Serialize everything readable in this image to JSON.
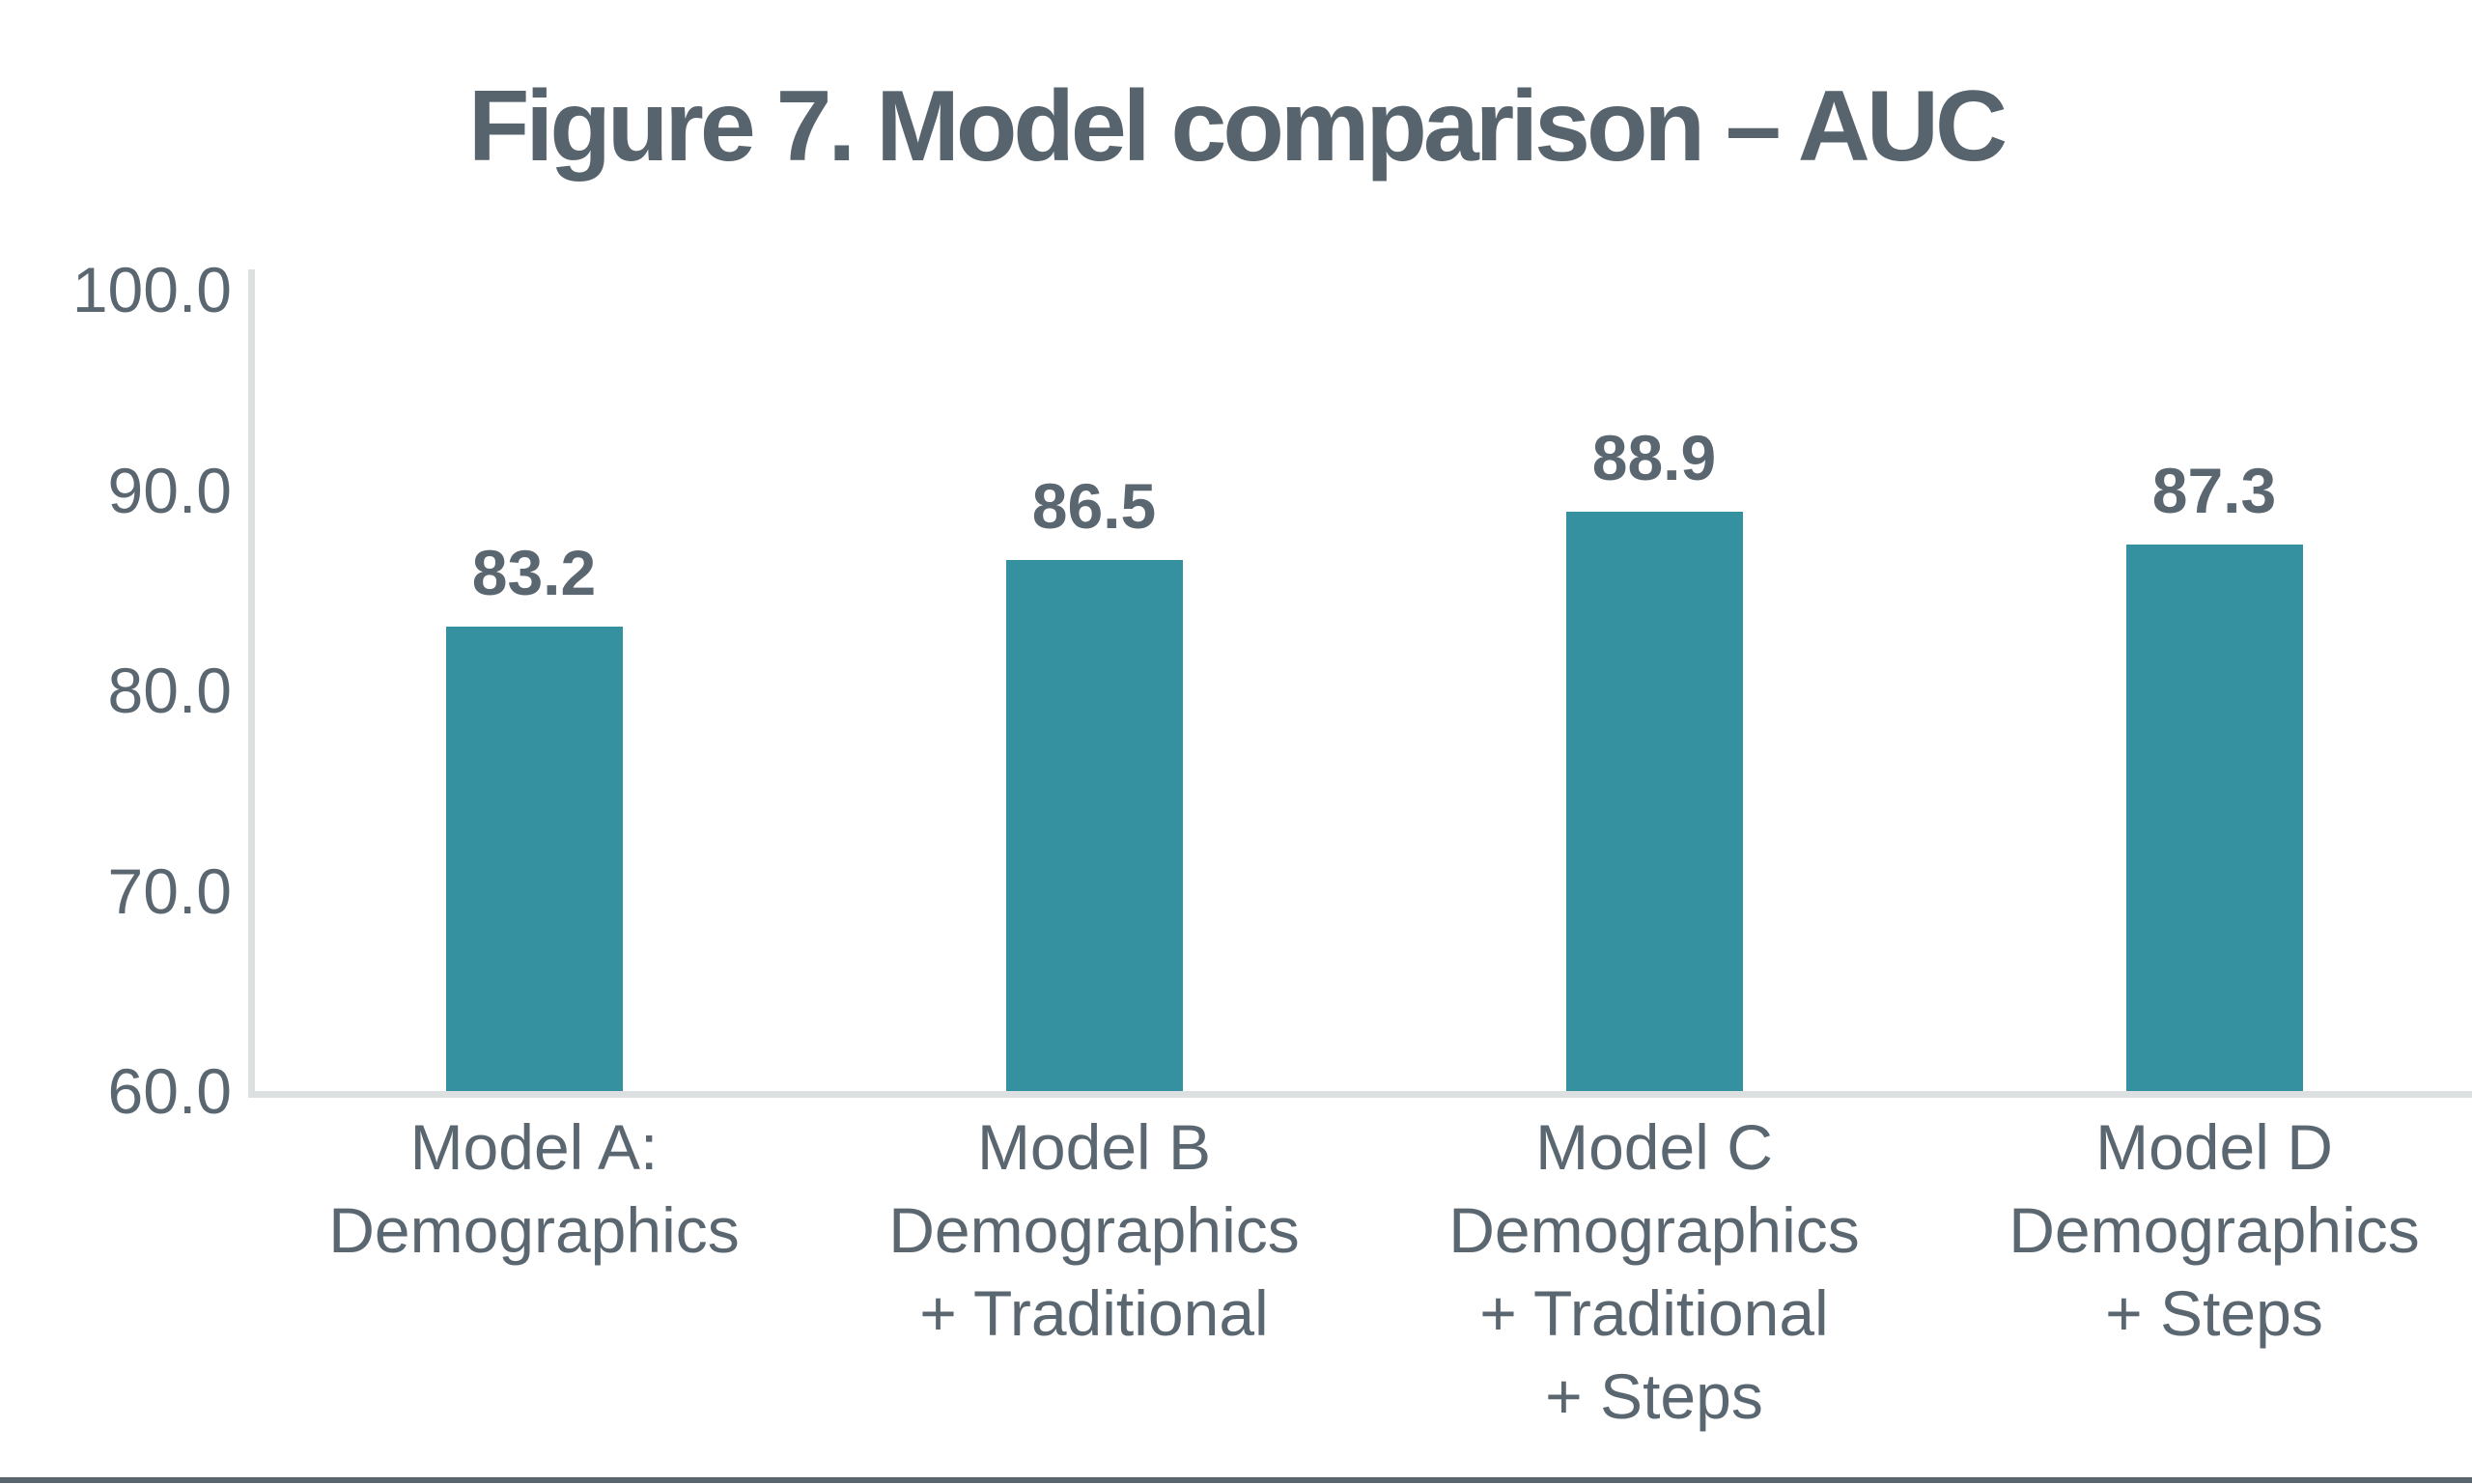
{
  "title": "Figure 7. Model comparison – AUC",
  "chart_data": {
    "type": "bar",
    "title": "Figure 7. Model comparison – AUC",
    "categories": [
      [
        "Model A:",
        "Demographics"
      ],
      [
        "Model B",
        "Demographics",
        "+ Traditional"
      ],
      [
        "Model C",
        "Demographics",
        "+ Traditional",
        "+ Steps"
      ],
      [
        "Model D",
        "Demographics",
        "+ Steps"
      ]
    ],
    "categories_text": [
      "Model A:\nDemographics",
      "Model B\nDemographics\n+ Traditional",
      "Model C\nDemographics\n+ Traditional\n+ Steps",
      "Model D\nDemographics\n+ Steps"
    ],
    "values": [
      83.2,
      86.5,
      88.9,
      87.3
    ],
    "value_labels": [
      "83.2",
      "86.5",
      "88.9",
      "87.3"
    ],
    "xlabel": "",
    "ylabel": "",
    "ylim": [
      60.0,
      100.0
    ],
    "yticks": [
      100.0,
      90.0,
      80.0,
      70.0,
      60.0
    ],
    "ytick_labels": [
      "100.0",
      "90.0",
      "80.0",
      "70.0",
      "60.0"
    ],
    "grid": false,
    "legend": null,
    "bar_color": "#35919F",
    "axis_line_color": "#DDE0E1",
    "text_color": "#5B6770",
    "bottom_rule_color": "#59646C"
  }
}
